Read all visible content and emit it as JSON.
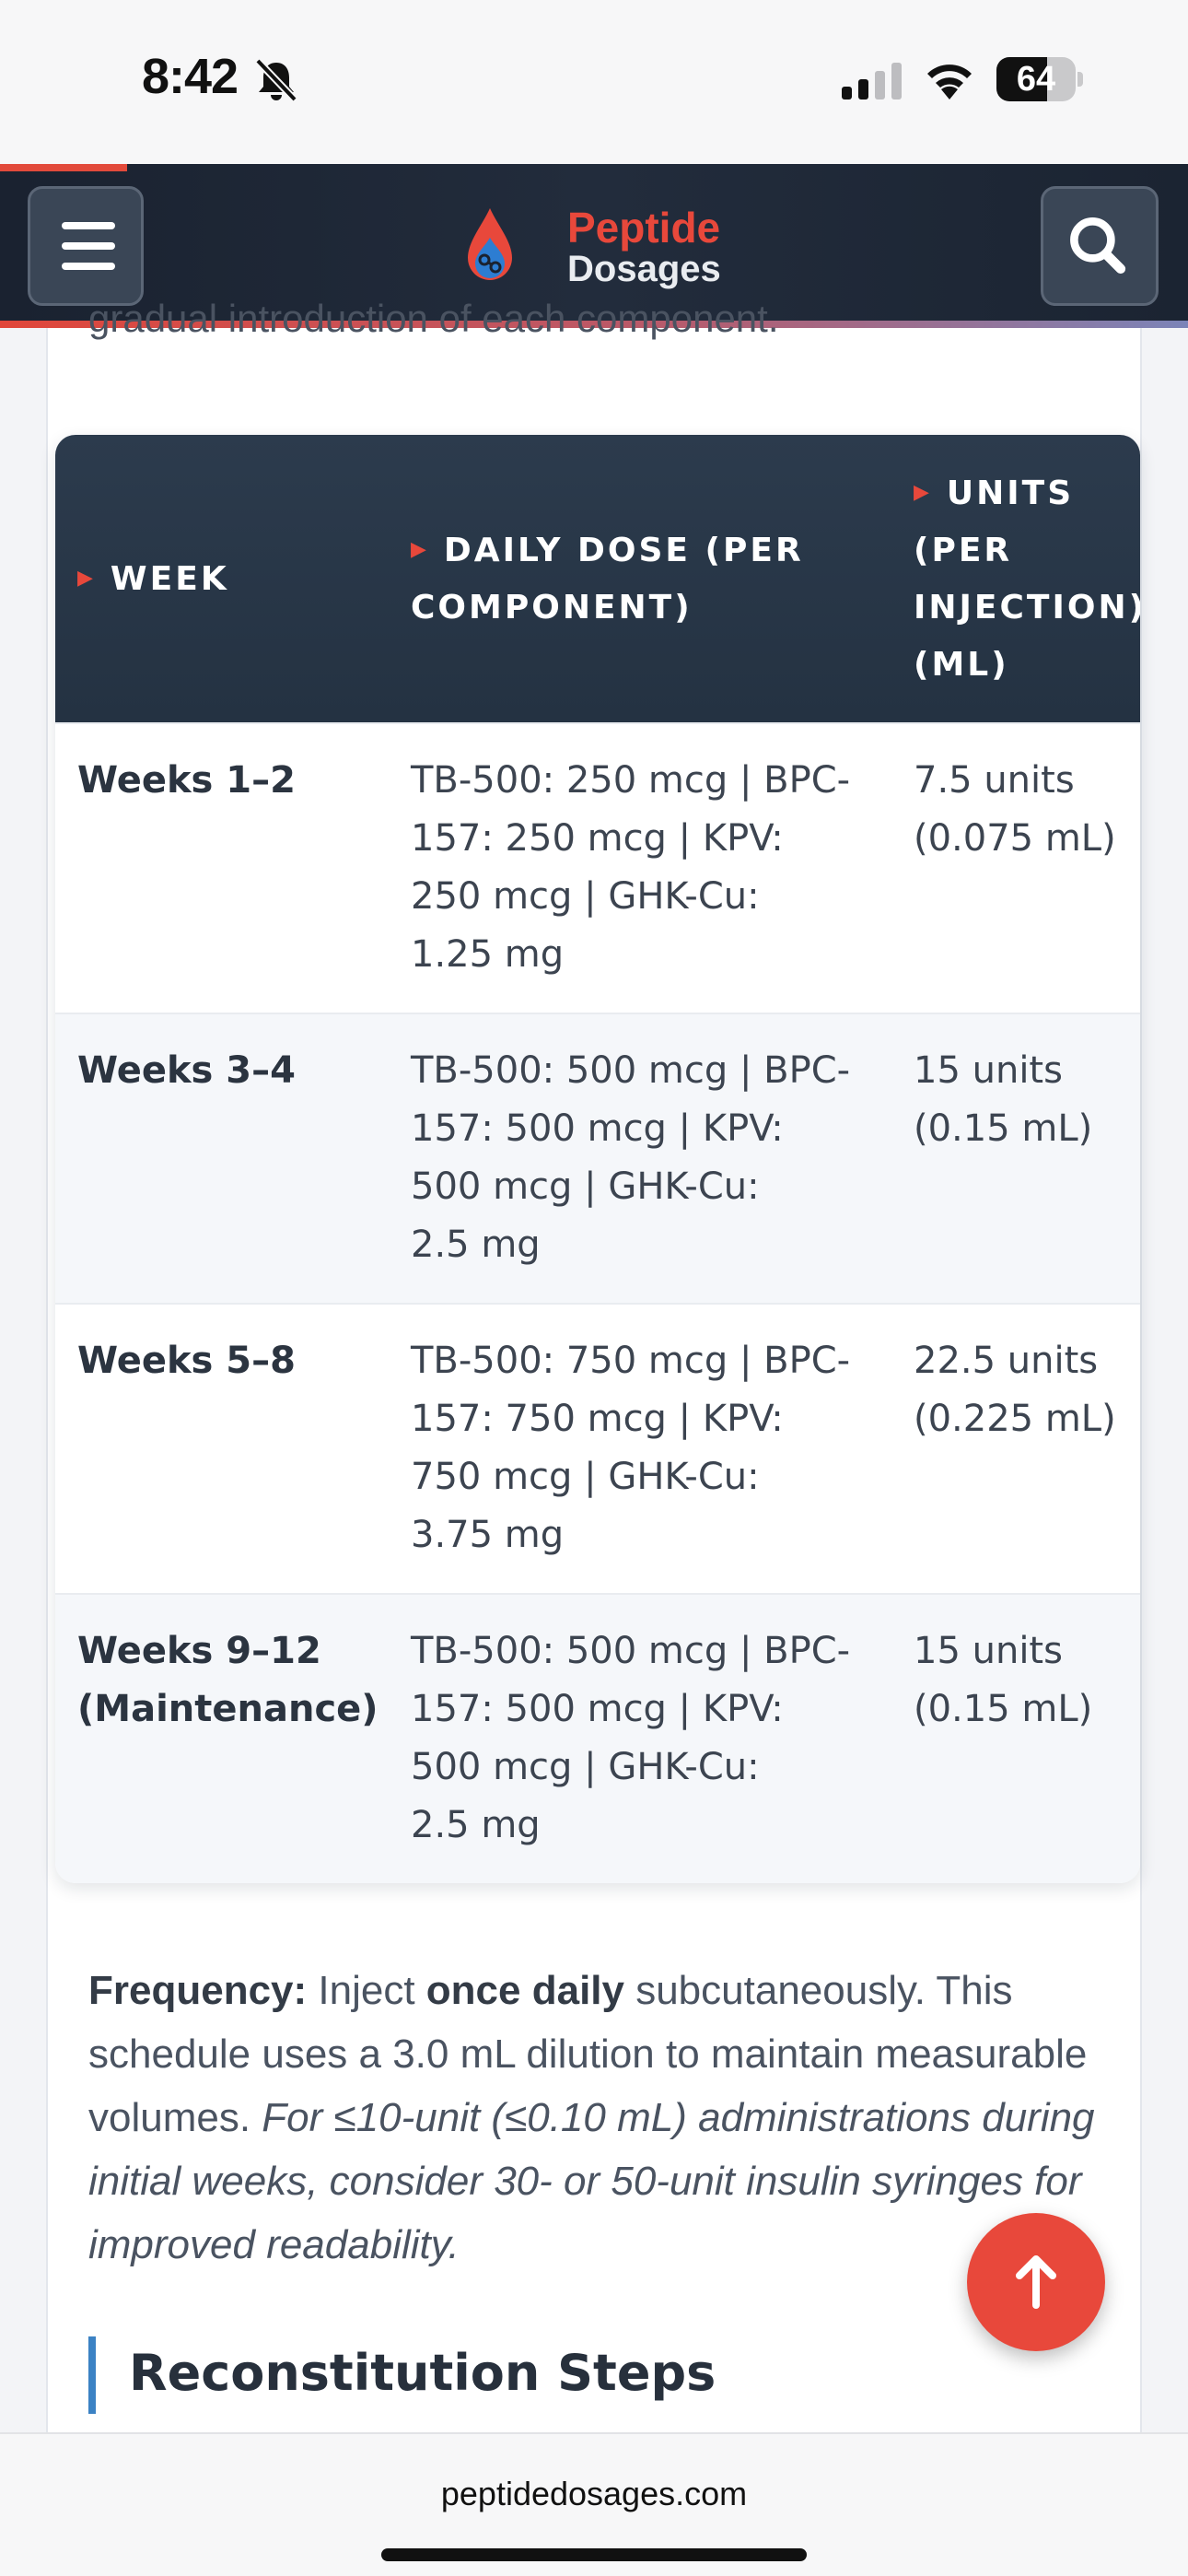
{
  "status_bar": {
    "time": "8:42",
    "battery_percent": "64",
    "battery_level": 0.64
  },
  "header": {
    "logo_line1": "Peptide",
    "logo_line2": "Dosages",
    "reading_progress": 0.107
  },
  "article": {
    "cut_off_text": "gradual introduction of each component."
  },
  "table": {
    "headers": [
      "WEEK",
      "DAILY DOSE (PER COMPONENT)",
      "UNITS (PER INJECTION) (ML)"
    ],
    "header_lines": {
      "week": "WEEK",
      "dose_1": "DAILY DOSE (PER",
      "dose_2": "COMPONENT)",
      "units_1": "UNITS",
      "units_2": "(PER",
      "units_3": "INJECTION)",
      "units_4": "(ML)"
    },
    "rows": [
      {
        "week": [
          "Weeks 1–2"
        ],
        "dose": [
          "TB-500: 250 mcg | BPC-",
          "157: 250 mcg | KPV:",
          "250 mcg | GHK-Cu:",
          "1.25 mg"
        ],
        "units": [
          "7.5 units",
          "(0.075 mL)"
        ]
      },
      {
        "week": [
          "Weeks 3–4"
        ],
        "dose": [
          "TB-500: 500 mcg | BPC-",
          "157: 500 mcg | KPV:",
          "500 mcg | GHK-Cu:",
          "2.5 mg"
        ],
        "units": [
          "15 units",
          "(0.15 mL)"
        ]
      },
      {
        "week": [
          "Weeks 5–8"
        ],
        "dose": [
          "TB-500: 750 mcg | BPC-",
          "157: 750 mcg | KPV:",
          "750 mcg | GHK-Cu:",
          "3.75 mg"
        ],
        "units": [
          "22.5 units",
          "(0.225 mL)"
        ]
      },
      {
        "week": [
          "Weeks 9–12",
          "(Maintenance)"
        ],
        "dose": [
          "TB-500: 500 mcg | BPC-",
          "157: 500 mcg | KPV:",
          "500 mcg | GHK-Cu:",
          "2.5 mg"
        ],
        "units": [
          "15 units",
          "(0.15 mL)"
        ]
      }
    ]
  },
  "frequency": {
    "label": "Frequency:",
    "t1": " Inject ",
    "bold": "once daily",
    "t2": " subcutaneously. This schedule uses a 3.0 mL dilution to maintain measurable volumes. ",
    "italic": "For ≤10-unit (≤0.10 mL) administrations during initial weeks, consider 30- or 50-unit insulin syringes for improved readability."
  },
  "section": {
    "title": "Reconstitution Steps"
  },
  "browser": {
    "url": "peptidedosages.com"
  },
  "colors": {
    "accent": "#e8483b",
    "header_bg": "#1f2937",
    "table_head": "#2c3b4d",
    "section_bar": "#3b82c4"
  },
  "icons": [
    "bell-slash-icon",
    "cellular-signal-icon",
    "wifi-icon",
    "battery-icon",
    "hamburger-menu-icon",
    "search-icon",
    "logo-drop-icon",
    "arrow-up-icon"
  ]
}
